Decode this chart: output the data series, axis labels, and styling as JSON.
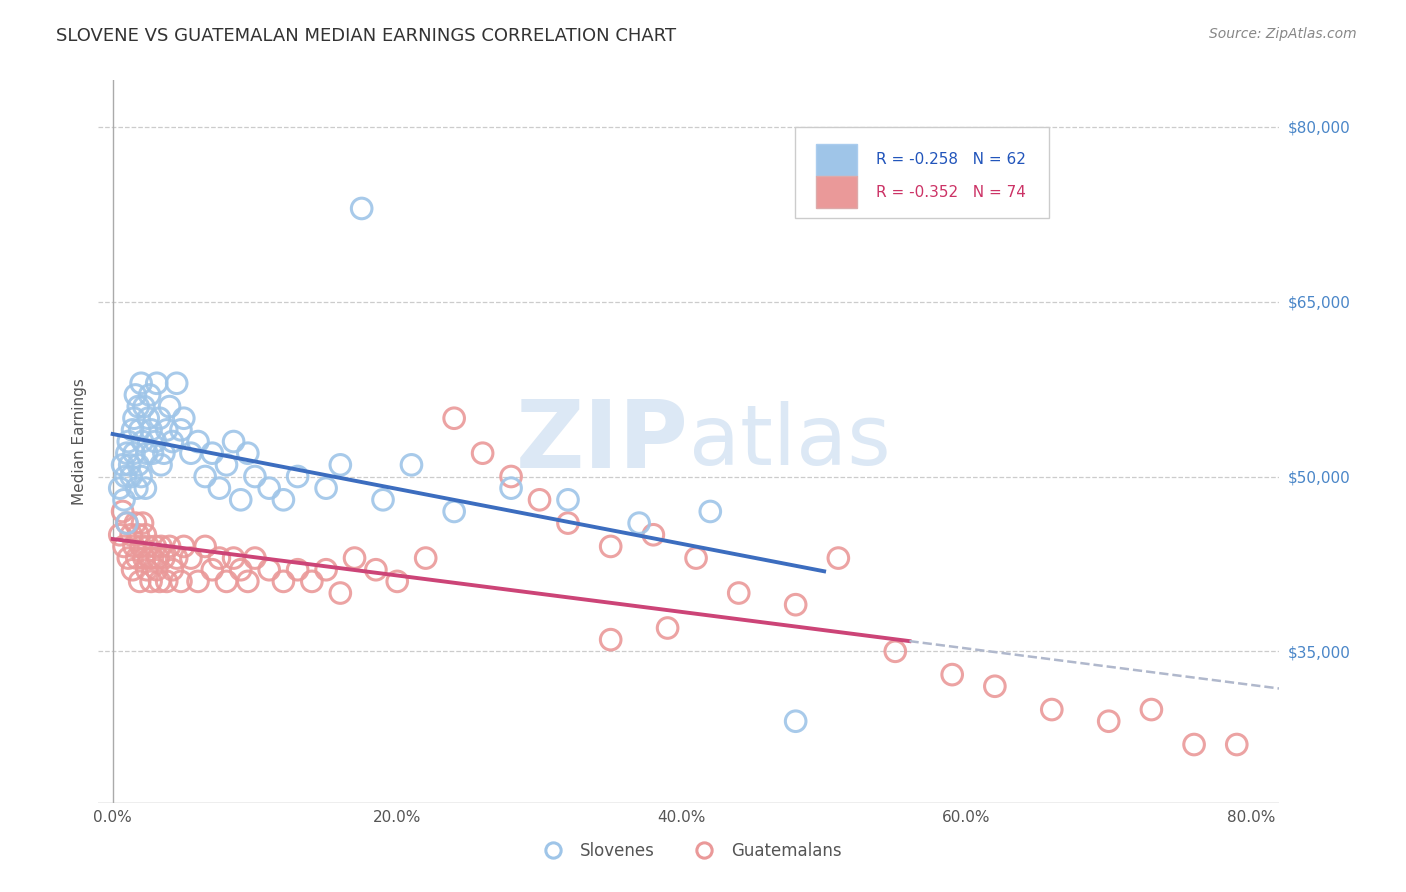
{
  "title": "SLOVENE VS GUATEMALAN MEDIAN EARNINGS CORRELATION CHART",
  "source": "Source: ZipAtlas.com",
  "xlabel_labels": [
    "0.0%",
    "20.0%",
    "40.0%",
    "60.0%",
    "80.0%"
  ],
  "xlabel_ticks": [
    0.0,
    0.2,
    0.4,
    0.6,
    0.8
  ],
  "ylabel": "Median Earnings",
  "yaxis_labels": [
    "$80,000",
    "$65,000",
    "$50,000",
    "$35,000"
  ],
  "yaxis_values": [
    80000,
    65000,
    50000,
    35000
  ],
  "ymin": 22000,
  "ymax": 84000,
  "xmin": -0.01,
  "xmax": 0.82,
  "slovene_R": -0.258,
  "slovene_N": 62,
  "guatemalan_R": -0.352,
  "guatemalan_N": 74,
  "slovene_color": "#9fc5e8",
  "guatemalan_color": "#ea9999",
  "slovene_fill_color": "#9fc5e8",
  "guatemalan_fill_color": "#ea9999",
  "slovene_line_color": "#3c6dbf",
  "guatemalan_line_color": "#cc4477",
  "dashed_line_color": "#b0b8cc",
  "watermark_color": "#dce8f5",
  "background_color": "#ffffff",
  "slovene_scatter_x": [
    0.005,
    0.007,
    0.008,
    0.009,
    0.01,
    0.01,
    0.011,
    0.012,
    0.013,
    0.014,
    0.015,
    0.015,
    0.016,
    0.017,
    0.018,
    0.018,
    0.019,
    0.02,
    0.02,
    0.021,
    0.022,
    0.023,
    0.024,
    0.025,
    0.026,
    0.027,
    0.028,
    0.03,
    0.031,
    0.033,
    0.034,
    0.036,
    0.038,
    0.04,
    0.042,
    0.045,
    0.048,
    0.05,
    0.055,
    0.06,
    0.065,
    0.07,
    0.075,
    0.08,
    0.085,
    0.09,
    0.095,
    0.1,
    0.11,
    0.12,
    0.13,
    0.15,
    0.16,
    0.175,
    0.19,
    0.21,
    0.24,
    0.28,
    0.32,
    0.37,
    0.42,
    0.48
  ],
  "slovene_scatter_y": [
    49000,
    51000,
    48000,
    50000,
    52000,
    46000,
    53000,
    51000,
    50000,
    54000,
    55000,
    52000,
    57000,
    49000,
    56000,
    51000,
    54000,
    58000,
    50000,
    53000,
    56000,
    49000,
    52000,
    55000,
    57000,
    54000,
    52000,
    53000,
    58000,
    55000,
    51000,
    52000,
    54000,
    56000,
    53000,
    58000,
    54000,
    55000,
    52000,
    53000,
    50000,
    52000,
    49000,
    51000,
    53000,
    48000,
    52000,
    50000,
    49000,
    48000,
    50000,
    49000,
    51000,
    73000,
    48000,
    51000,
    47000,
    49000,
    48000,
    46000,
    47000,
    29000
  ],
  "guatemalan_scatter_x": [
    0.005,
    0.007,
    0.008,
    0.01,
    0.011,
    0.013,
    0.014,
    0.015,
    0.016,
    0.017,
    0.018,
    0.019,
    0.02,
    0.021,
    0.022,
    0.023,
    0.024,
    0.025,
    0.026,
    0.027,
    0.028,
    0.03,
    0.031,
    0.032,
    0.033,
    0.034,
    0.036,
    0.038,
    0.04,
    0.042,
    0.045,
    0.048,
    0.05,
    0.055,
    0.06,
    0.065,
    0.07,
    0.075,
    0.08,
    0.085,
    0.09,
    0.095,
    0.1,
    0.11,
    0.12,
    0.13,
    0.14,
    0.15,
    0.16,
    0.17,
    0.185,
    0.2,
    0.22,
    0.24,
    0.26,
    0.28,
    0.3,
    0.32,
    0.35,
    0.38,
    0.41,
    0.44,
    0.48,
    0.51,
    0.55,
    0.59,
    0.62,
    0.66,
    0.7,
    0.73,
    0.76,
    0.79,
    0.35,
    0.39
  ],
  "guatemalan_scatter_y": [
    45000,
    47000,
    44000,
    46000,
    43000,
    45000,
    42000,
    44000,
    46000,
    43000,
    45000,
    41000,
    44000,
    46000,
    43000,
    45000,
    42000,
    44000,
    43000,
    41000,
    43000,
    44000,
    42000,
    43000,
    41000,
    44000,
    43000,
    41000,
    44000,
    42000,
    43000,
    41000,
    44000,
    43000,
    41000,
    44000,
    42000,
    43000,
    41000,
    43000,
    42000,
    41000,
    43000,
    42000,
    41000,
    42000,
    41000,
    42000,
    40000,
    43000,
    42000,
    41000,
    43000,
    55000,
    52000,
    50000,
    48000,
    46000,
    44000,
    45000,
    43000,
    40000,
    39000,
    43000,
    35000,
    33000,
    32000,
    30000,
    29000,
    30000,
    27000,
    27000,
    36000,
    37000
  ]
}
